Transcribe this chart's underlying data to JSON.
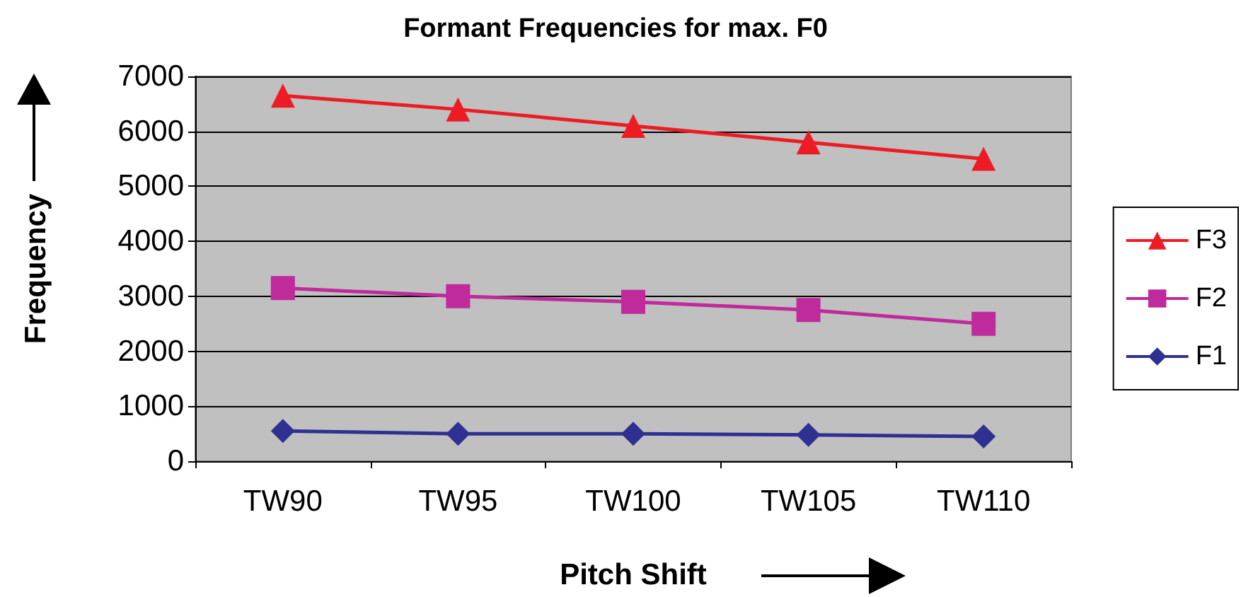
{
  "chart_data": {
    "type": "line",
    "title": "Formant Frequencies for max. F0",
    "xlabel": "Pitch Shift",
    "ylabel": "Frequency",
    "categories": [
      "TW90",
      "TW95",
      "TW100",
      "TW105",
      "TW110"
    ],
    "series": [
      {
        "name": "F3",
        "color": "#ed1c24",
        "marker": "triangle",
        "values": [
          6650,
          6400,
          6100,
          5800,
          5500
        ]
      },
      {
        "name": "F2",
        "color": "#bf2a9c",
        "marker": "square",
        "values": [
          3150,
          3000,
          2900,
          2750,
          2500
        ]
      },
      {
        "name": "F1",
        "color": "#2e3192",
        "marker": "diamond",
        "values": [
          550,
          500,
          500,
          480,
          450
        ]
      }
    ],
    "ylim": [
      0,
      7000
    ],
    "yticks": [
      0,
      1000,
      2000,
      3000,
      4000,
      5000,
      6000,
      7000
    ],
    "grid": "y",
    "legend": "right",
    "line_style": "solid"
  }
}
